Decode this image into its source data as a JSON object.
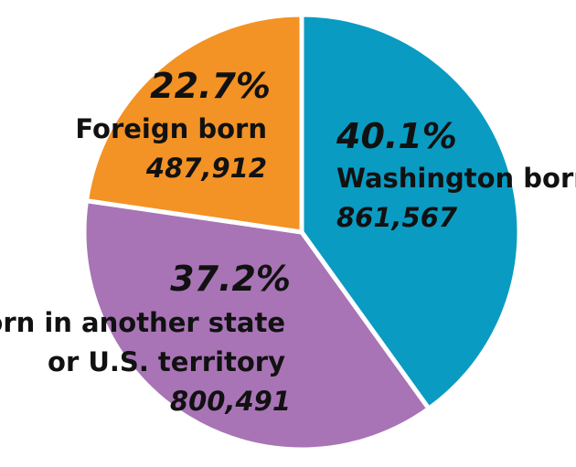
{
  "chart_data": {
    "type": "pie",
    "slices": [
      {
        "label_lines": [
          "Washington born"
        ],
        "percent": "40.1%",
        "value": 861567,
        "value_label": "861,567",
        "color": "#0a9bc2"
      },
      {
        "label_lines": [
          "Born in another state",
          "or U.S. territory"
        ],
        "percent": "37.2%",
        "value": 800491,
        "value_label": "800,491",
        "color": "#a874b6"
      },
      {
        "label_lines": [
          "Foreign born"
        ],
        "percent": "22.7%",
        "value": 487912,
        "value_label": "487,912",
        "color": "#f39225"
      }
    ]
  }
}
